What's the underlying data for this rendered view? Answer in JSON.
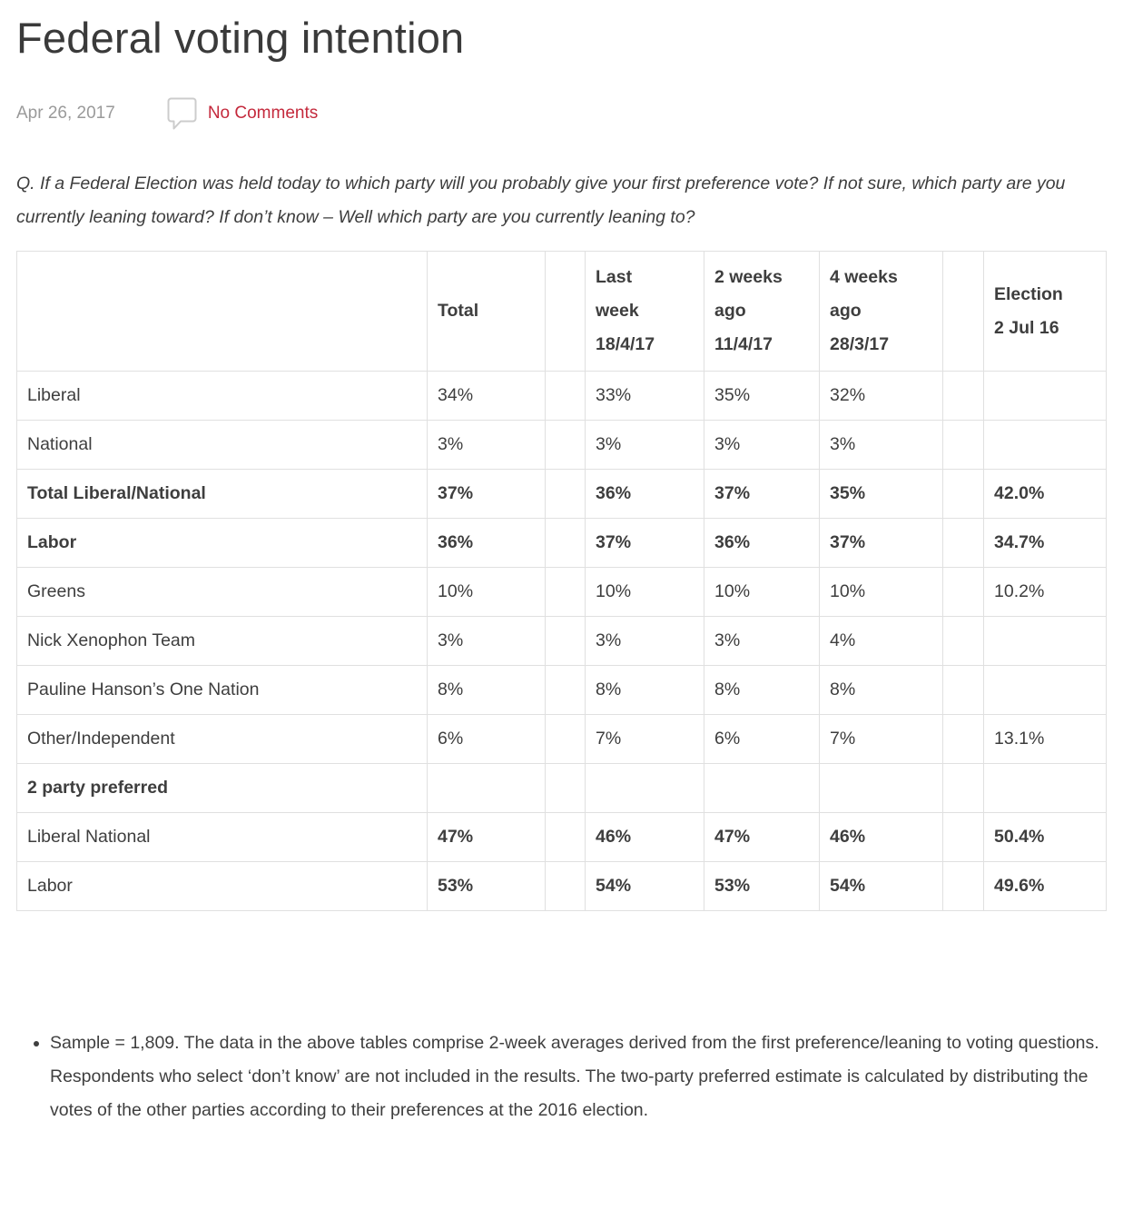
{
  "page": {
    "title": "Federal voting intention",
    "date": "Apr 26, 2017",
    "comments_label": "No Comments",
    "question": "Q. If a Federal Election was held today to which party will you probably give your first preference vote? If not sure, which party are you currently leaning toward? If don’t know – Well which party are you currently leaning to?",
    "note": "Sample = 1,809. The data in the above tables comprise 2-week averages derived from the first preference/leaning to voting questions. Respondents who select ‘don’t know’ are not included in the results. The two-party preferred estimate is calculated by distributing the votes of the other parties according to their preferences at the 2016 election."
  },
  "colors": {
    "accent_red": "#c4293c",
    "text_dark": "#3e3e3e",
    "text_muted": "#9a9a9a",
    "border_gray": "#e0e0e0",
    "icon_gray": "#cccccc"
  },
  "icons": {
    "comment_bubble": "speech-bubble-outline"
  },
  "table": {
    "columns": [
      {
        "key": "label",
        "label": ""
      },
      {
        "key": "total",
        "label": "Total"
      },
      {
        "key": "spacer1",
        "label": ""
      },
      {
        "key": "lastweek",
        "label": "Last\nweek\n18/4/17"
      },
      {
        "key": "2weeks",
        "label": "2 weeks\nago\n11/4/17"
      },
      {
        "key": "4weeks",
        "label": "4 weeks\nago\n28/3/17"
      },
      {
        "key": "spacer2",
        "label": ""
      },
      {
        "key": "election",
        "label": "Election\n2 Jul 16"
      }
    ],
    "rows": [
      {
        "label": "Liberal",
        "label_bold": false,
        "values_bold": false,
        "cells": [
          "34%",
          "",
          "33%",
          "35%",
          "32%",
          "",
          ""
        ]
      },
      {
        "label": "National",
        "label_bold": false,
        "values_bold": false,
        "cells": [
          "3%",
          "",
          "3%",
          "3%",
          "3%",
          "",
          ""
        ]
      },
      {
        "label": "Total Liberal/National",
        "label_bold": true,
        "values_bold": true,
        "cells": [
          "37%",
          "",
          "36%",
          "37%",
          "35%",
          "",
          "42.0%"
        ]
      },
      {
        "label": "Labor",
        "label_bold": true,
        "values_bold": true,
        "cells": [
          "36%",
          "",
          "37%",
          "36%",
          "37%",
          "",
          "34.7%"
        ]
      },
      {
        "label": "Greens",
        "label_bold": false,
        "values_bold": false,
        "cells": [
          "10%",
          "",
          "10%",
          "10%",
          "10%",
          "",
          "10.2%"
        ]
      },
      {
        "label": "Nick Xenophon Team",
        "label_bold": false,
        "values_bold": false,
        "cells": [
          "3%",
          "",
          "3%",
          "3%",
          "4%",
          "",
          ""
        ]
      },
      {
        "label": "Pauline Hanson’s One Nation",
        "label_bold": false,
        "values_bold": false,
        "cells": [
          "8%",
          "",
          "8%",
          "8%",
          "8%",
          "",
          ""
        ]
      },
      {
        "label": "Other/Independent",
        "label_bold": false,
        "values_bold": false,
        "cells": [
          "6%",
          "",
          "7%",
          "6%",
          "7%",
          "",
          "13.1%"
        ]
      },
      {
        "label": "2 party preferred",
        "label_bold": true,
        "values_bold": false,
        "cells": [
          "",
          "",
          "",
          "",
          "",
          "",
          ""
        ]
      },
      {
        "label": "Liberal National",
        "label_bold": false,
        "values_bold": true,
        "cells": [
          "47%",
          "",
          "46%",
          "47%",
          "46%",
          "",
          "50.4%"
        ]
      },
      {
        "label": "Labor",
        "label_bold": false,
        "values_bold": true,
        "cells": [
          "53%",
          "",
          "54%",
          "53%",
          "54%",
          "",
          "49.6%"
        ]
      }
    ]
  }
}
